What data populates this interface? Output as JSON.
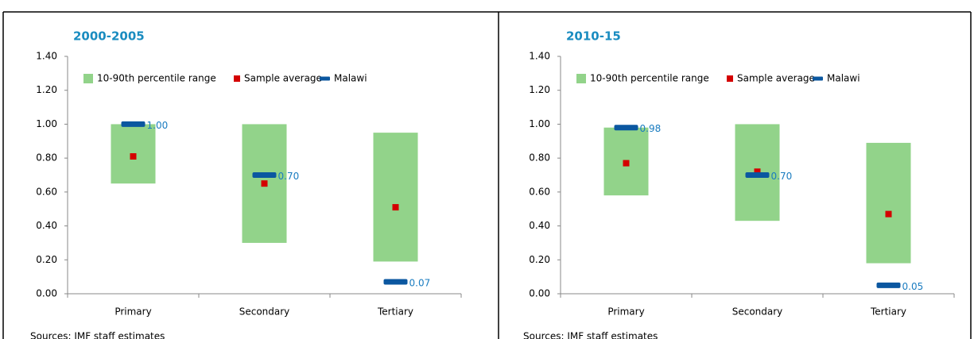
{
  "chart_data": [
    {
      "type": "range",
      "title": "2000-2005",
      "note": "Sources: IMF staff estimates",
      "categories": [
        "Primary",
        "Secondary",
        "Tertiary"
      ],
      "ylim": [
        0,
        1.4
      ],
      "yticks": [
        {
          "value": 0,
          "label": "0.00"
        },
        {
          "value": 0.2,
          "label": "0.20"
        },
        {
          "value": 0.4,
          "label": "0.40"
        },
        {
          "value": 0.6,
          "label": "0.60"
        },
        {
          "value": 0.8,
          "label": "0.80"
        },
        {
          "value": 1.0,
          "label": "1.00"
        },
        {
          "value": 1.2,
          "label": "1.20"
        },
        {
          "value": 1.4,
          "label": "1.40"
        }
      ],
      "series": [
        {
          "name": "10-90th percentile range",
          "color": "#92d38a",
          "low": [
            0.65,
            0.3,
            0.19
          ],
          "high": [
            1.0,
            1.0,
            0.95
          ]
        },
        {
          "name": "Sample average",
          "color": "#d40000",
          "values": [
            0.81,
            0.65,
            0.51
          ]
        },
        {
          "name": "Malawi",
          "color": "#0b57a0",
          "values": [
            1.0,
            0.7,
            0.07
          ],
          "value_labels": [
            "1.00",
            "0.70",
            "0.07"
          ]
        }
      ]
    },
    {
      "type": "range",
      "title": "2010-15",
      "note": "Sources: IMF staff estimates",
      "categories": [
        "Primary",
        "Secondary",
        "Tertiary"
      ],
      "ylim": [
        0,
        1.4
      ],
      "yticks": [
        {
          "value": 0,
          "label": "0.00"
        },
        {
          "value": 0.2,
          "label": "0.20"
        },
        {
          "value": 0.4,
          "label": "0.40"
        },
        {
          "value": 0.6,
          "label": "0.60"
        },
        {
          "value": 0.8,
          "label": "0.80"
        },
        {
          "value": 1.0,
          "label": "1.00"
        },
        {
          "value": 1.2,
          "label": "1.20"
        },
        {
          "value": 1.4,
          "label": "1.40"
        }
      ],
      "series": [
        {
          "name": "10-90th percentile range",
          "color": "#92d38a",
          "low": [
            0.58,
            0.43,
            0.18
          ],
          "high": [
            0.98,
            1.0,
            0.89
          ]
        },
        {
          "name": "Sample average",
          "color": "#d40000",
          "values": [
            0.77,
            0.72,
            0.47
          ]
        },
        {
          "name": "Malawi",
          "color": "#0b57a0",
          "values": [
            0.98,
            0.7,
            0.05
          ],
          "value_labels": [
            "0.98",
            "0.70",
            "0.05"
          ]
        }
      ]
    }
  ]
}
